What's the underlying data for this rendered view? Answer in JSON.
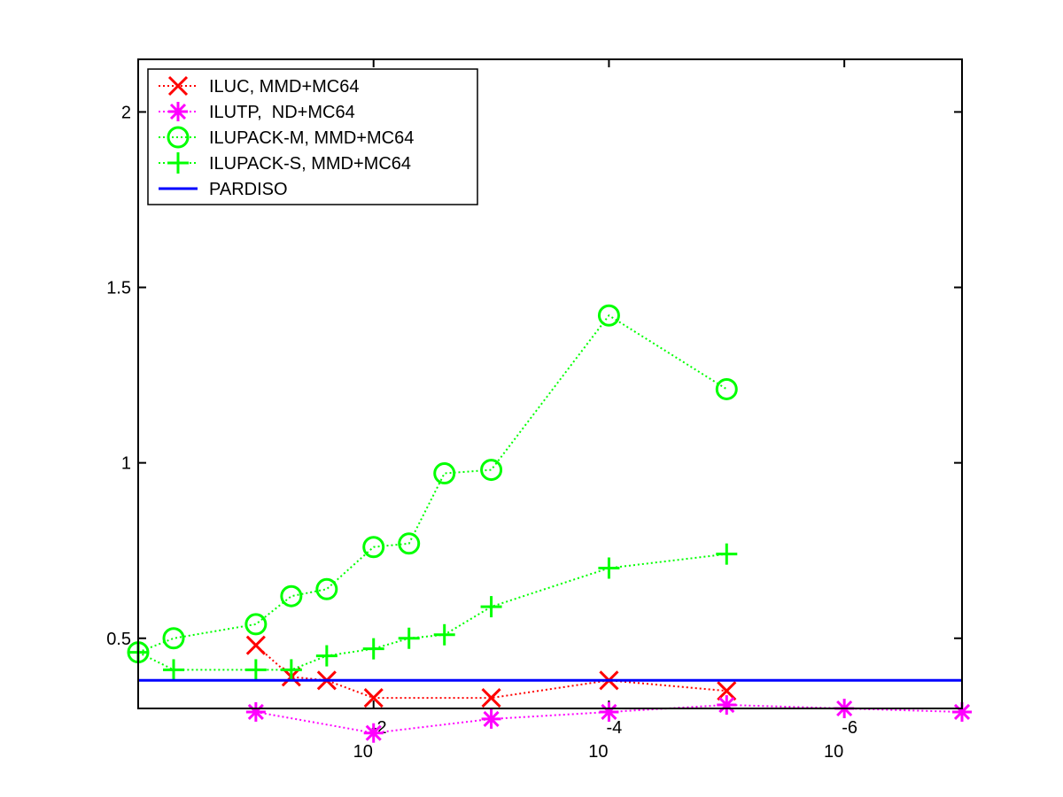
{
  "chart_data": {
    "type": "line",
    "x_axis": {
      "scale": "log",
      "reversed": true,
      "range": [
        1,
        1e-07
      ],
      "ticks": [
        {
          "value": 0.01,
          "base": "10",
          "exponent": "-2"
        },
        {
          "value": 0.0001,
          "base": "10",
          "exponent": "-4"
        },
        {
          "value": 1e-06,
          "base": "10",
          "exponent": "-6"
        }
      ]
    },
    "y_axis": {
      "scale": "linear",
      "range": [
        0.3,
        2.15
      ],
      "ticks": [
        {
          "value": 0.5,
          "label": "0.5"
        },
        {
          "value": 1,
          "label": "1"
        },
        {
          "value": 1.5,
          "label": "1.5"
        },
        {
          "value": 2,
          "label": "2"
        }
      ]
    },
    "grid": false,
    "legend_position": "top-left",
    "series": [
      {
        "name": "ILUC, MMD+MC64",
        "color": "#ff0000",
        "marker": "x",
        "line_style": "dotted",
        "points": [
          {
            "x": 0.1,
            "y": 0.48
          },
          {
            "x": 0.05,
            "y": 0.39
          },
          {
            "x": 0.025,
            "y": 0.38
          },
          {
            "x": 0.01,
            "y": 0.33
          },
          {
            "x": 0.001,
            "y": 0.33
          },
          {
            "x": 0.0001,
            "y": 0.38
          },
          {
            "x": 1e-05,
            "y": 0.35
          }
        ]
      },
      {
        "name": "ILUTP,  ND+MC64",
        "color": "#ff00ff",
        "marker": "asterisk",
        "line_style": "dotted",
        "points": [
          {
            "x": 0.1,
            "y": 0.29
          },
          {
            "x": 0.01,
            "y": 0.23
          },
          {
            "x": 0.001,
            "y": 0.27
          },
          {
            "x": 0.0001,
            "y": 0.29
          },
          {
            "x": 1e-05,
            "y": 0.31
          },
          {
            "x": 1e-06,
            "y": 0.3
          },
          {
            "x": 1e-07,
            "y": 0.29
          }
        ]
      },
      {
        "name": "ILUPACK-M, MMD+MC64",
        "color": "#00ff00",
        "marker": "circle",
        "line_style": "dotted",
        "points": [
          {
            "x": 1,
            "y": 0.46
          },
          {
            "x": 0.5,
            "y": 0.5
          },
          {
            "x": 0.1,
            "y": 0.54
          },
          {
            "x": 0.05,
            "y": 0.62
          },
          {
            "x": 0.025,
            "y": 0.64
          },
          {
            "x": 0.01,
            "y": 0.76
          },
          {
            "x": 0.005,
            "y": 0.77
          },
          {
            "x": 0.0025,
            "y": 0.97
          },
          {
            "x": 0.001,
            "y": 0.98
          },
          {
            "x": 0.0001,
            "y": 1.42
          },
          {
            "x": 1e-05,
            "y": 1.21
          }
        ]
      },
      {
        "name": "ILUPACK-S, MMD+MC64",
        "color": "#00ff00",
        "marker": "plus",
        "line_style": "dotted",
        "points": [
          {
            "x": 1,
            "y": 0.46
          },
          {
            "x": 0.5,
            "y": 0.41
          },
          {
            "x": 0.1,
            "y": 0.41
          },
          {
            "x": 0.05,
            "y": 0.41
          },
          {
            "x": 0.025,
            "y": 0.45
          },
          {
            "x": 0.01,
            "y": 0.47
          },
          {
            "x": 0.005,
            "y": 0.5
          },
          {
            "x": 0.0025,
            "y": 0.51
          },
          {
            "x": 0.001,
            "y": 0.59
          },
          {
            "x": 0.0001,
            "y": 0.7
          },
          {
            "x": 1e-05,
            "y": 0.74
          }
        ]
      },
      {
        "name": "PARDISO",
        "color": "#0000ff",
        "marker": "none",
        "line_style": "solid",
        "points": [
          {
            "x": 1,
            "y": 0.38
          },
          {
            "x": 1e-07,
            "y": 0.38
          }
        ]
      }
    ]
  }
}
